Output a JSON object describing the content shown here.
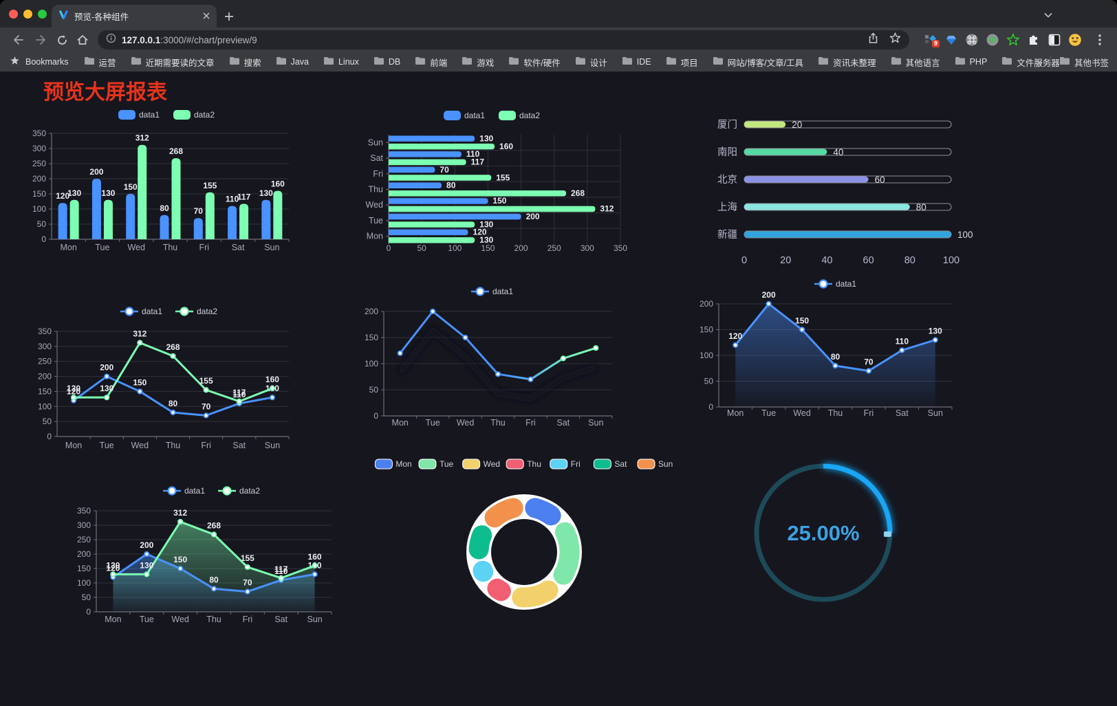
{
  "browser": {
    "tab": {
      "title": "预览-各种组件"
    },
    "url": {
      "host": "127.0.0.1",
      "rest": ":3000/#/chart/preview/9"
    },
    "extensions_badge": "9",
    "bookmarks_bar": {
      "star_label": "Bookmarks",
      "folders": [
        "运营",
        "近期需要读的文章",
        "搜索",
        "Java",
        "Linux",
        "DB",
        "前端",
        "游戏",
        "软件/硬件",
        "设计",
        "IDE",
        "项目",
        "网站/博客/文章/工具",
        "资讯未整理",
        "其他语言",
        "PHP",
        "文件服务器"
      ],
      "overflow": "»",
      "other": "其他书签"
    }
  },
  "page": {
    "title": "预览大屏报表"
  },
  "chart_data": [
    {
      "id": "bar-vertical",
      "type": "bar",
      "categories": [
        "Mon",
        "Tue",
        "Wed",
        "Thu",
        "Fri",
        "Sat",
        "Sun"
      ],
      "series": [
        {
          "name": "data1",
          "color": "#4992ff",
          "values": [
            120,
            200,
            150,
            80,
            70,
            110,
            130
          ]
        },
        {
          "name": "data2",
          "color": "#7cffb2",
          "values": [
            130,
            130,
            312,
            268,
            155,
            117,
            160
          ]
        }
      ],
      "ylim": [
        0,
        350
      ],
      "yticks": [
        0,
        50,
        100,
        150,
        200,
        250,
        300,
        350
      ],
      "grid": true,
      "legend_position": "top",
      "labels": true
    },
    {
      "id": "bar-horizontal",
      "type": "bar-horizontal",
      "categories_bottom_to_top": [
        "Mon",
        "Tue",
        "Wed",
        "Thu",
        "Fri",
        "Sat",
        "Sun"
      ],
      "series": [
        {
          "name": "data1",
          "color": "#4992ff",
          "values": [
            120,
            200,
            150,
            80,
            70,
            110,
            130
          ]
        },
        {
          "name": "data2",
          "color": "#7cffb2",
          "values": [
            130,
            130,
            312,
            268,
            155,
            117,
            160
          ]
        }
      ],
      "xlim": [
        0,
        350
      ],
      "xticks": [
        0,
        50,
        100,
        150,
        200,
        250,
        300,
        350
      ],
      "grid": true,
      "legend_position": "top",
      "labels": true
    },
    {
      "id": "city-progress",
      "type": "progress-bars",
      "rows": [
        {
          "label": "厦门",
          "value": 20,
          "color": "#c3e77f"
        },
        {
          "label": "南阳",
          "value": 40,
          "color": "#58d9a4"
        },
        {
          "label": "北京",
          "value": 60,
          "color": "#8c92e3"
        },
        {
          "label": "上海",
          "value": 80,
          "color": "#8ae6e0"
        },
        {
          "label": "新疆",
          "value": 100,
          "color": "#32a4dd"
        }
      ],
      "max": 100,
      "xticks": [
        0,
        20,
        40,
        60,
        80,
        100
      ]
    },
    {
      "id": "line-two-series",
      "type": "line",
      "categories": [
        "Mon",
        "Tue",
        "Wed",
        "Thu",
        "Fri",
        "Sat",
        "Sun"
      ],
      "series": [
        {
          "name": "data1",
          "color": "#4992ff",
          "values": [
            120,
            200,
            150,
            80,
            70,
            110,
            130
          ]
        },
        {
          "name": "data2",
          "color": "#7cffb2",
          "values": [
            130,
            130,
            312,
            268,
            155,
            117,
            160
          ]
        }
      ],
      "ylim": [
        0,
        350
      ],
      "yticks": [
        0,
        50,
        100,
        150,
        200,
        250,
        300,
        350
      ],
      "grid": true,
      "legend_position": "top",
      "labels": true
    },
    {
      "id": "line-gradient",
      "type": "line",
      "categories": [
        "Mon",
        "Tue",
        "Wed",
        "Thu",
        "Fri",
        "Sat",
        "Sun"
      ],
      "series": [
        {
          "name": "data1",
          "gradient": [
            "#4992ff",
            "#7cffb2"
          ],
          "color": "#4992ff",
          "values": [
            120,
            200,
            150,
            80,
            70,
            110,
            130
          ]
        }
      ],
      "ylim": [
        0,
        200
      ],
      "yticks": [
        0,
        50,
        100,
        150,
        200
      ],
      "grid": true,
      "legend_position": "top",
      "labels": false,
      "shadow": true
    },
    {
      "id": "area-one-series",
      "type": "area",
      "categories": [
        "Mon",
        "Tue",
        "Wed",
        "Thu",
        "Fri",
        "Sat",
        "Sun"
      ],
      "series": [
        {
          "name": "data1",
          "color": "#4992ff",
          "values": [
            120,
            200,
            150,
            80,
            70,
            110,
            130
          ]
        }
      ],
      "ylim": [
        0,
        200
      ],
      "yticks": [
        0,
        50,
        100,
        150,
        200
      ],
      "grid": true,
      "legend_position": "top",
      "labels": true
    },
    {
      "id": "area-two-series",
      "type": "area",
      "categories": [
        "Mon",
        "Tue",
        "Wed",
        "Thu",
        "Fri",
        "Sat",
        "Sun"
      ],
      "series": [
        {
          "name": "data1",
          "color": "#4992ff",
          "values": [
            120,
            200,
            150,
            80,
            70,
            110,
            130
          ]
        },
        {
          "name": "data2",
          "color": "#7cffb2",
          "values": [
            130,
            130,
            312,
            268,
            155,
            117,
            160
          ]
        }
      ],
      "ylim": [
        0,
        350
      ],
      "yticks": [
        0,
        50,
        100,
        150,
        200,
        250,
        300,
        350
      ],
      "grid": true,
      "legend_position": "top",
      "labels": true
    },
    {
      "id": "donut",
      "type": "pie",
      "categories": [
        "Mon",
        "Tue",
        "Wed",
        "Thu",
        "Fri",
        "Sat",
        "Sun"
      ],
      "values": [
        120,
        200,
        150,
        80,
        70,
        110,
        130
      ],
      "colors": [
        "#4c7ff0",
        "#7fe7a9",
        "#f2d06b",
        "#f25e72",
        "#5cd2f5",
        "#0dbd8d",
        "#f2914c"
      ],
      "border_color": "#ffffff",
      "legend_position": "top"
    },
    {
      "id": "gauge",
      "type": "gauge",
      "value": 25,
      "display": "25.00%",
      "color": "#19a6f6",
      "track_color": "#1d4a58",
      "text_color": "#3da1e3"
    }
  ]
}
